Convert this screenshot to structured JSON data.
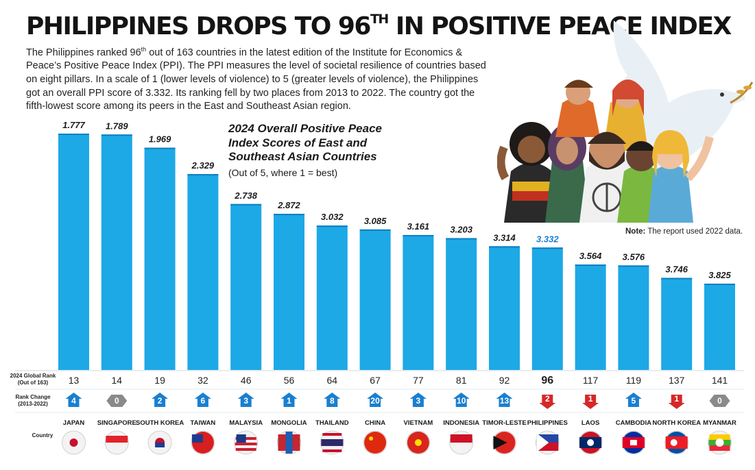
{
  "header": {
    "title": "PHILIPPINES DROPS TO 96",
    "title_sup": "TH",
    "title_rest": " IN POSITIVE PEACE INDEX",
    "intro_a": "The Philippines ranked 96",
    "intro_sup": "th",
    "intro_b": " out of 163 countries in the latest edition of the Institute for Economics & Peace’s Positive Peace Index (PPI). The PPI measures the level of societal resilience of countries based on eight pillars. In a scale of 1 (lower levels of violence) to 5 (greater levels of violence), the Philippines got an overall PPI score of 3.332. Its ranking fell by two places from 2013 to 2022. The country got the fifth-lowest score among its peers in the East and Southeast Asian region."
  },
  "note": {
    "label": "Note:",
    "text": " The report used 2022 data."
  },
  "colors": {
    "bar": "#1da8e6",
    "bar_edge": "#0d7fc0",
    "up": "#1a7fd0",
    "zero": "#8a8a8a",
    "down": "#d62828",
    "highlight": "#1a7fd0"
  },
  "chart_data": {
    "type": "bar",
    "title": "2024 Overall Positive Peace Index Scores of East and Southeast Asian Countries",
    "subtitle": "(Out of 5, where 1 = best)",
    "ylim": [
      0,
      5
    ],
    "categories": [
      "JAPAN",
      "SINGAPORE",
      "SOUTH KOREA",
      "TAIWAN",
      "MALAYSIA",
      "MONGOLIA",
      "THAILAND",
      "CHINA",
      "VIETNAM",
      "INDONESIA",
      "TIMOR-LESTE",
      "PHILIPPINES",
      "LAOS",
      "CAMBODIA",
      "NORTH KOREA",
      "MYANMAR"
    ],
    "values": [
      1.777,
      1.789,
      1.969,
      2.329,
      2.738,
      2.872,
      3.032,
      3.085,
      3.161,
      3.203,
      3.314,
      3.332,
      3.564,
      3.576,
      3.746,
      3.825
    ],
    "value_labels": [
      "1.777",
      "1.789",
      "1.969",
      "2.329",
      "2.738",
      "2.872",
      "3.032",
      "3.085",
      "3.161",
      "3.203",
      "3.314",
      "3.332",
      "3.564",
      "3.576",
      "3.746",
      "3.825"
    ],
    "highlight": "PHILIPPINES",
    "rank_row_label": [
      "2024 Global Rank",
      "(Out of 163)"
    ],
    "global_rank": [
      "13",
      "14",
      "19",
      "32",
      "46",
      "56",
      "64",
      "67",
      "77",
      "81",
      "92",
      "96",
      "117",
      "119",
      "137",
      "141"
    ],
    "change_row_label": [
      "Rank Change",
      "(2013-2022)"
    ],
    "rank_change": [
      4,
      0,
      2,
      6,
      3,
      1,
      8,
      20,
      3,
      10,
      13,
      -2,
      -1,
      5,
      -1,
      0
    ],
    "rank_change_labels": [
      "4",
      "0",
      "2",
      "6",
      "3",
      "1",
      "8",
      "20",
      "3",
      "10",
      "13",
      "2",
      "1",
      "5",
      "1",
      "0"
    ],
    "country_row_label": "Country"
  }
}
